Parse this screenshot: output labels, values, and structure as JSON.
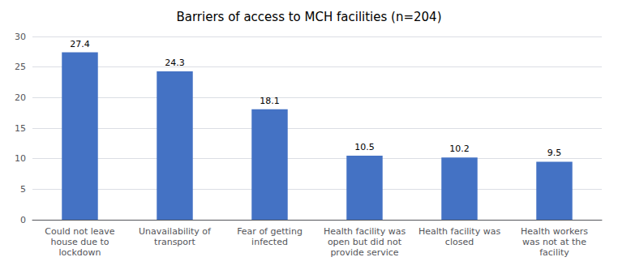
{
  "chart_data": {
    "type": "bar",
    "title": "Barriers of access to MCH facilities (n=204)",
    "categories": [
      "Could not leave\nhouse due to\nlockdown",
      "Unavailability of\ntransport",
      "Fear of getting\ninfected",
      "Health facility was\nopen but did not\nprovide service",
      "Health facility was\nclosed",
      "Health workers\nwas not at the\nfacility"
    ],
    "values": [
      27.4,
      24.3,
      18.1,
      10.5,
      10.2,
      9.5
    ],
    "color": "#4472C4",
    "ylim": [
      0,
      30
    ],
    "yticks": [
      0,
      5,
      10,
      15,
      20,
      25,
      30
    ],
    "grid": true,
    "data_labels": true
  }
}
